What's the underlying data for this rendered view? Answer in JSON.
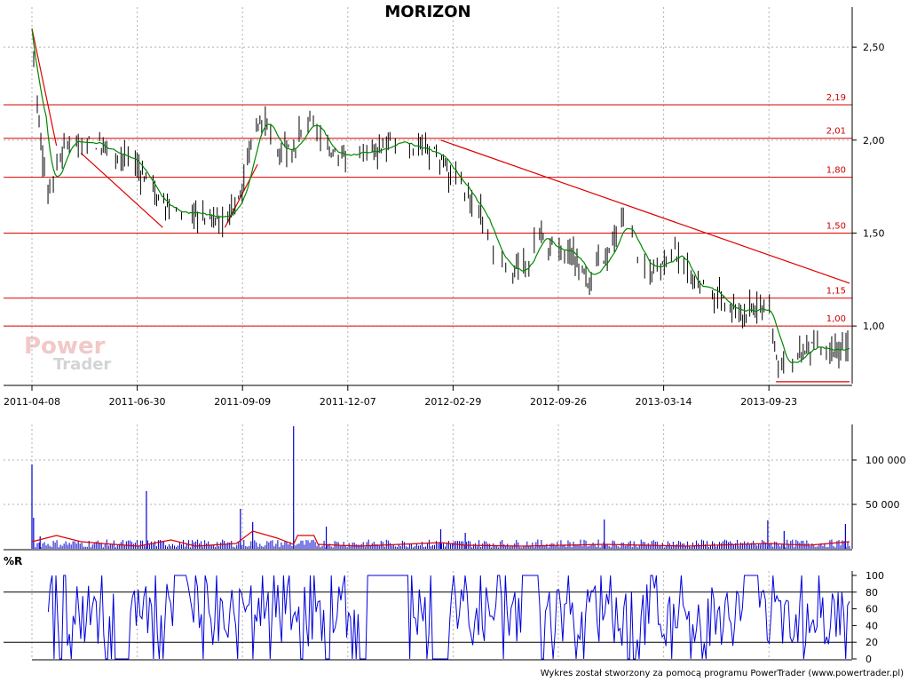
{
  "colors": {
    "level": "#dd0000",
    "ma": "#008800",
    "price": "#000000",
    "volume": "#0000cc",
    "volume_ma": "#dd0000",
    "willr": "#0000dd",
    "grid": "#b0b0b0",
    "axis": "#000000"
  },
  "watermark": {
    "line1": "Power",
    "line2": "Trader"
  },
  "footer": "Wykres został stworzony za pomocą programu PowerTrader (www.powertrader.pl)",
  "chart_data": [
    {
      "type": "line",
      "title": "MORIZON",
      "x_ticks": [
        "2011-04-08",
        "2011-06-30",
        "2011-09-09",
        "2011-12-07",
        "2012-02-29",
        "2012-09-26",
        "2013-03-14",
        "2013-09-23"
      ],
      "y_ticks": [
        2.5,
        2.0,
        1.5,
        1.0
      ],
      "y_tick_labels": [
        "2,50",
        "2,00",
        "1,50",
        "1,00"
      ],
      "ylim": [
        0.69,
        2.62
      ],
      "levels": [
        {
          "value": 2.19,
          "label": "2,19"
        },
        {
          "value": 2.01,
          "label": "2,01"
        },
        {
          "value": 1.8,
          "label": "1,80"
        },
        {
          "value": 1.5,
          "label": "1,50"
        },
        {
          "value": 1.15,
          "label": "1,15"
        },
        {
          "value": 1.0,
          "label": "1,00"
        }
      ],
      "trendlines": [
        {
          "from": [
            0,
            2.6
          ],
          "to": [
            0.03,
            1.97
          ]
        },
        {
          "from": [
            0.06,
            1.93
          ],
          "to": [
            0.16,
            1.53
          ]
        },
        {
          "from": [
            0.236,
            1.53
          ],
          "to": [
            0.276,
            1.87
          ]
        },
        {
          "from": [
            0.5,
            2.0
          ],
          "to": [
            1.0,
            1.23
          ]
        }
      ],
      "support_line": {
        "from": [
          0.91,
          0.7
        ],
        "to": [
          1.0,
          0.7
        ]
      },
      "price_keypoints": [
        [
          0,
          2.6
        ],
        [
          0.01,
          2.0
        ],
        [
          0.02,
          1.72
        ],
        [
          0.03,
          1.87
        ],
        [
          0.04,
          1.97
        ],
        [
          0.06,
          2.0
        ],
        [
          0.1,
          1.95
        ],
        [
          0.13,
          1.85
        ],
        [
          0.16,
          1.65
        ],
        [
          0.18,
          1.6
        ],
        [
          0.2,
          1.62
        ],
        [
          0.22,
          1.58
        ],
        [
          0.24,
          1.6
        ],
        [
          0.26,
          1.8
        ],
        [
          0.27,
          2.05
        ],
        [
          0.28,
          2.12
        ],
        [
          0.3,
          1.95
        ],
        [
          0.32,
          1.97
        ],
        [
          0.34,
          2.1
        ],
        [
          0.36,
          1.95
        ],
        [
          0.38,
          1.92
        ],
        [
          0.4,
          1.92
        ],
        [
          0.42,
          1.95
        ],
        [
          0.45,
          2.0
        ],
        [
          0.47,
          1.95
        ],
        [
          0.49,
          1.92
        ],
        [
          0.5,
          1.9
        ],
        [
          0.53,
          1.72
        ],
        [
          0.55,
          1.6
        ],
        [
          0.57,
          1.35
        ],
        [
          0.6,
          1.28
        ],
        [
          0.62,
          1.5
        ],
        [
          0.64,
          1.4
        ],
        [
          0.66,
          1.38
        ],
        [
          0.68,
          1.25
        ],
        [
          0.7,
          1.35
        ],
        [
          0.72,
          1.55
        ],
        [
          0.73,
          1.5
        ],
        [
          0.75,
          1.3
        ],
        [
          0.77,
          1.35
        ],
        [
          0.79,
          1.4
        ],
        [
          0.81,
          1.22
        ],
        [
          0.83,
          1.2
        ],
        [
          0.85,
          1.1
        ],
        [
          0.87,
          1.08
        ],
        [
          0.9,
          1.1
        ],
        [
          0.91,
          0.82
        ],
        [
          0.93,
          0.8
        ],
        [
          0.95,
          0.88
        ],
        [
          0.97,
          0.85
        ],
        [
          1.0,
          0.9
        ]
      ]
    },
    {
      "type": "bar",
      "title": "",
      "y_ticks": [
        100000,
        50000
      ],
      "y_tick_labels": [
        "100 000",
        "50 000"
      ],
      "ylim": [
        0,
        140000
      ],
      "spikes": [
        {
          "x": 0.0,
          "v": 95000
        },
        {
          "x": 0.002,
          "v": 35000
        },
        {
          "x": 0.01,
          "v": 14000
        },
        {
          "x": 0.14,
          "v": 65000
        },
        {
          "x": 0.255,
          "v": 45000
        },
        {
          "x": 0.27,
          "v": 30000
        },
        {
          "x": 0.32,
          "v": 138000
        },
        {
          "x": 0.36,
          "v": 25000
        },
        {
          "x": 0.5,
          "v": 22000
        },
        {
          "x": 0.53,
          "v": 18000
        },
        {
          "x": 0.7,
          "v": 33000
        },
        {
          "x": 0.9,
          "v": 32000
        },
        {
          "x": 0.92,
          "v": 20000
        },
        {
          "x": 0.995,
          "v": 28000
        }
      ],
      "ma_keypoints": [
        [
          0,
          8000
        ],
        [
          0.03,
          15000
        ],
        [
          0.06,
          8000
        ],
        [
          0.1,
          5000
        ],
        [
          0.13,
          3000
        ],
        [
          0.17,
          10000
        ],
        [
          0.2,
          3000
        ],
        [
          0.25,
          6000
        ],
        [
          0.27,
          20000
        ],
        [
          0.3,
          12000
        ],
        [
          0.32,
          5000
        ],
        [
          0.325,
          15000
        ],
        [
          0.345,
          15000
        ],
        [
          0.35,
          5000
        ],
        [
          0.4,
          3000
        ],
        [
          0.5,
          7000
        ],
        [
          0.53,
          4000
        ],
        [
          0.6,
          3000
        ],
        [
          0.7,
          5000
        ],
        [
          0.8,
          3000
        ],
        [
          0.9,
          6000
        ],
        [
          0.95,
          4000
        ],
        [
          1.0,
          8000
        ]
      ]
    },
    {
      "type": "line",
      "title": "%R",
      "y_ticks": [
        100,
        80,
        60,
        40,
        20,
        0
      ],
      "y_tick_labels": [
        "100",
        "80",
        "60",
        "40",
        "20",
        "0"
      ],
      "ylim": [
        0,
        100
      ],
      "reference_lines": [
        80,
        20
      ],
      "flat_segments": [
        {
          "x0": 0.1,
          "x1": 0.12,
          "v": 0
        },
        {
          "x0": 0.175,
          "x1": 0.19,
          "v": 100
        },
        {
          "x0": 0.4,
          "x1": 0.44,
          "v": 0
        },
        {
          "x0": 0.41,
          "x1": 0.46,
          "v": 100
        },
        {
          "x0": 0.6,
          "x1": 0.62,
          "v": 100
        },
        {
          "x0": 0.49,
          "x1": 0.51,
          "v": 0
        },
        {
          "x0": 0.87,
          "x1": 0.89,
          "v": 100
        }
      ],
      "seed": 7
    }
  ]
}
